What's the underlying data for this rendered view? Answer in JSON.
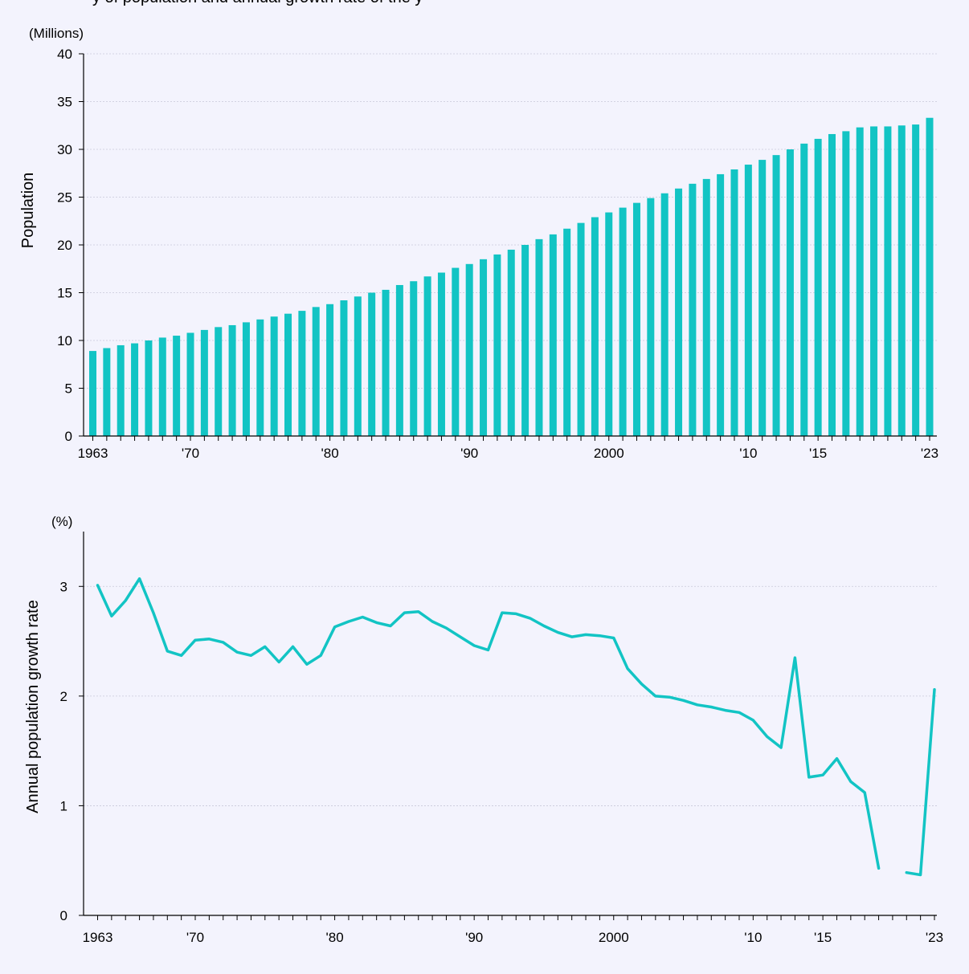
{
  "title": "y of population and annual growth rate of the y",
  "colors": {
    "series": "#12c4c4",
    "grid": "#c9c9d9",
    "axis": "#000000",
    "background": "#f3f3fd"
  },
  "chart_data": [
    {
      "type": "bar",
      "unit_label": "(Millions)",
      "ylabel": "Population",
      "ylim": [
        0,
        40
      ],
      "y_ticks": [
        "0",
        "5",
        "10",
        "15",
        "20",
        "25",
        "30",
        "35",
        "40"
      ],
      "x_range": [
        1963,
        2023
      ],
      "x_tick_labels": [
        {
          "year": 1963,
          "label": "1963"
        },
        {
          "year": 1970,
          "label": "'70"
        },
        {
          "year": 1980,
          "label": "'80"
        },
        {
          "year": 1990,
          "label": "'90"
        },
        {
          "year": 2000,
          "label": "2000"
        },
        {
          "year": 2010,
          "label": "'10"
        },
        {
          "year": 2015,
          "label": "'15"
        },
        {
          "year": 2023,
          "label": "'23"
        }
      ],
      "grid": true,
      "x": [
        1963,
        1964,
        1965,
        1966,
        1967,
        1968,
        1969,
        1970,
        1971,
        1972,
        1973,
        1974,
        1975,
        1976,
        1977,
        1978,
        1979,
        1980,
        1981,
        1982,
        1983,
        1984,
        1985,
        1986,
        1987,
        1988,
        1989,
        1990,
        1991,
        1992,
        1993,
        1994,
        1995,
        1996,
        1997,
        1998,
        1999,
        2000,
        2001,
        2002,
        2003,
        2004,
        2005,
        2006,
        2007,
        2008,
        2009,
        2010,
        2011,
        2012,
        2013,
        2014,
        2015,
        2016,
        2017,
        2018,
        2019,
        2020,
        2021,
        2022,
        2023
      ],
      "values": [
        8.9,
        9.2,
        9.5,
        9.7,
        10.0,
        10.3,
        10.5,
        10.8,
        11.1,
        11.4,
        11.6,
        11.9,
        12.2,
        12.5,
        12.8,
        13.1,
        13.5,
        13.8,
        14.2,
        14.6,
        15.0,
        15.3,
        15.8,
        16.2,
        16.7,
        17.1,
        17.6,
        18.0,
        18.5,
        19.0,
        19.5,
        20.0,
        20.6,
        21.1,
        21.7,
        22.3,
        22.9,
        23.4,
        23.9,
        24.4,
        24.9,
        25.4,
        25.9,
        26.4,
        26.9,
        27.4,
        27.9,
        28.4,
        28.9,
        29.4,
        30.0,
        30.6,
        31.1,
        31.6,
        31.9,
        32.3,
        32.4,
        32.4,
        32.5,
        32.6,
        33.3
      ]
    },
    {
      "type": "line",
      "unit_label": "(%)",
      "ylabel": "Annual population growth rate",
      "ylim": [
        0,
        3.5
      ],
      "y_ticks": [
        "0",
        "1",
        "2",
        "3"
      ],
      "x_range": [
        1963,
        2023
      ],
      "x_tick_labels": [
        {
          "year": 1963,
          "label": "1963"
        },
        {
          "year": 1970,
          "label": "'70"
        },
        {
          "year": 1980,
          "label": "'80"
        },
        {
          "year": 1990,
          "label": "'90"
        },
        {
          "year": 2000,
          "label": "2000"
        },
        {
          "year": 2010,
          "label": "'10"
        },
        {
          "year": 2015,
          "label": "'15"
        },
        {
          "year": 2023,
          "label": "'23"
        }
      ],
      "grid": true,
      "x": [
        1963,
        1964,
        1965,
        1966,
        1967,
        1968,
        1969,
        1970,
        1971,
        1972,
        1973,
        1974,
        1975,
        1976,
        1977,
        1978,
        1979,
        1980,
        1981,
        1982,
        1983,
        1984,
        1985,
        1986,
        1987,
        1988,
        1989,
        1990,
        1991,
        1992,
        1993,
        1994,
        1995,
        1996,
        1997,
        1998,
        1999,
        2000,
        2001,
        2002,
        2003,
        2004,
        2005,
        2006,
        2007,
        2008,
        2009,
        2010,
        2011,
        2012,
        2013,
        2014,
        2015,
        2016,
        2017,
        2018,
        2019,
        2020,
        2021,
        2022,
        2023
      ],
      "values": [
        3.01,
        2.73,
        2.87,
        3.07,
        2.76,
        2.41,
        2.37,
        2.51,
        2.52,
        2.49,
        2.4,
        2.37,
        2.45,
        2.31,
        2.45,
        2.29,
        2.37,
        2.63,
        2.68,
        2.72,
        2.67,
        2.64,
        2.76,
        2.77,
        2.68,
        2.62,
        2.54,
        2.46,
        2.42,
        2.76,
        2.75,
        2.71,
        2.64,
        2.58,
        2.54,
        2.56,
        2.55,
        2.53,
        2.25,
        2.11,
        2.0,
        1.99,
        1.96,
        1.92,
        1.9,
        1.87,
        1.85,
        1.78,
        1.63,
        1.53,
        2.35,
        1.26,
        1.28,
        1.43,
        1.22,
        1.12,
        0.43,
        null,
        0.39,
        0.37,
        2.06
      ]
    }
  ]
}
